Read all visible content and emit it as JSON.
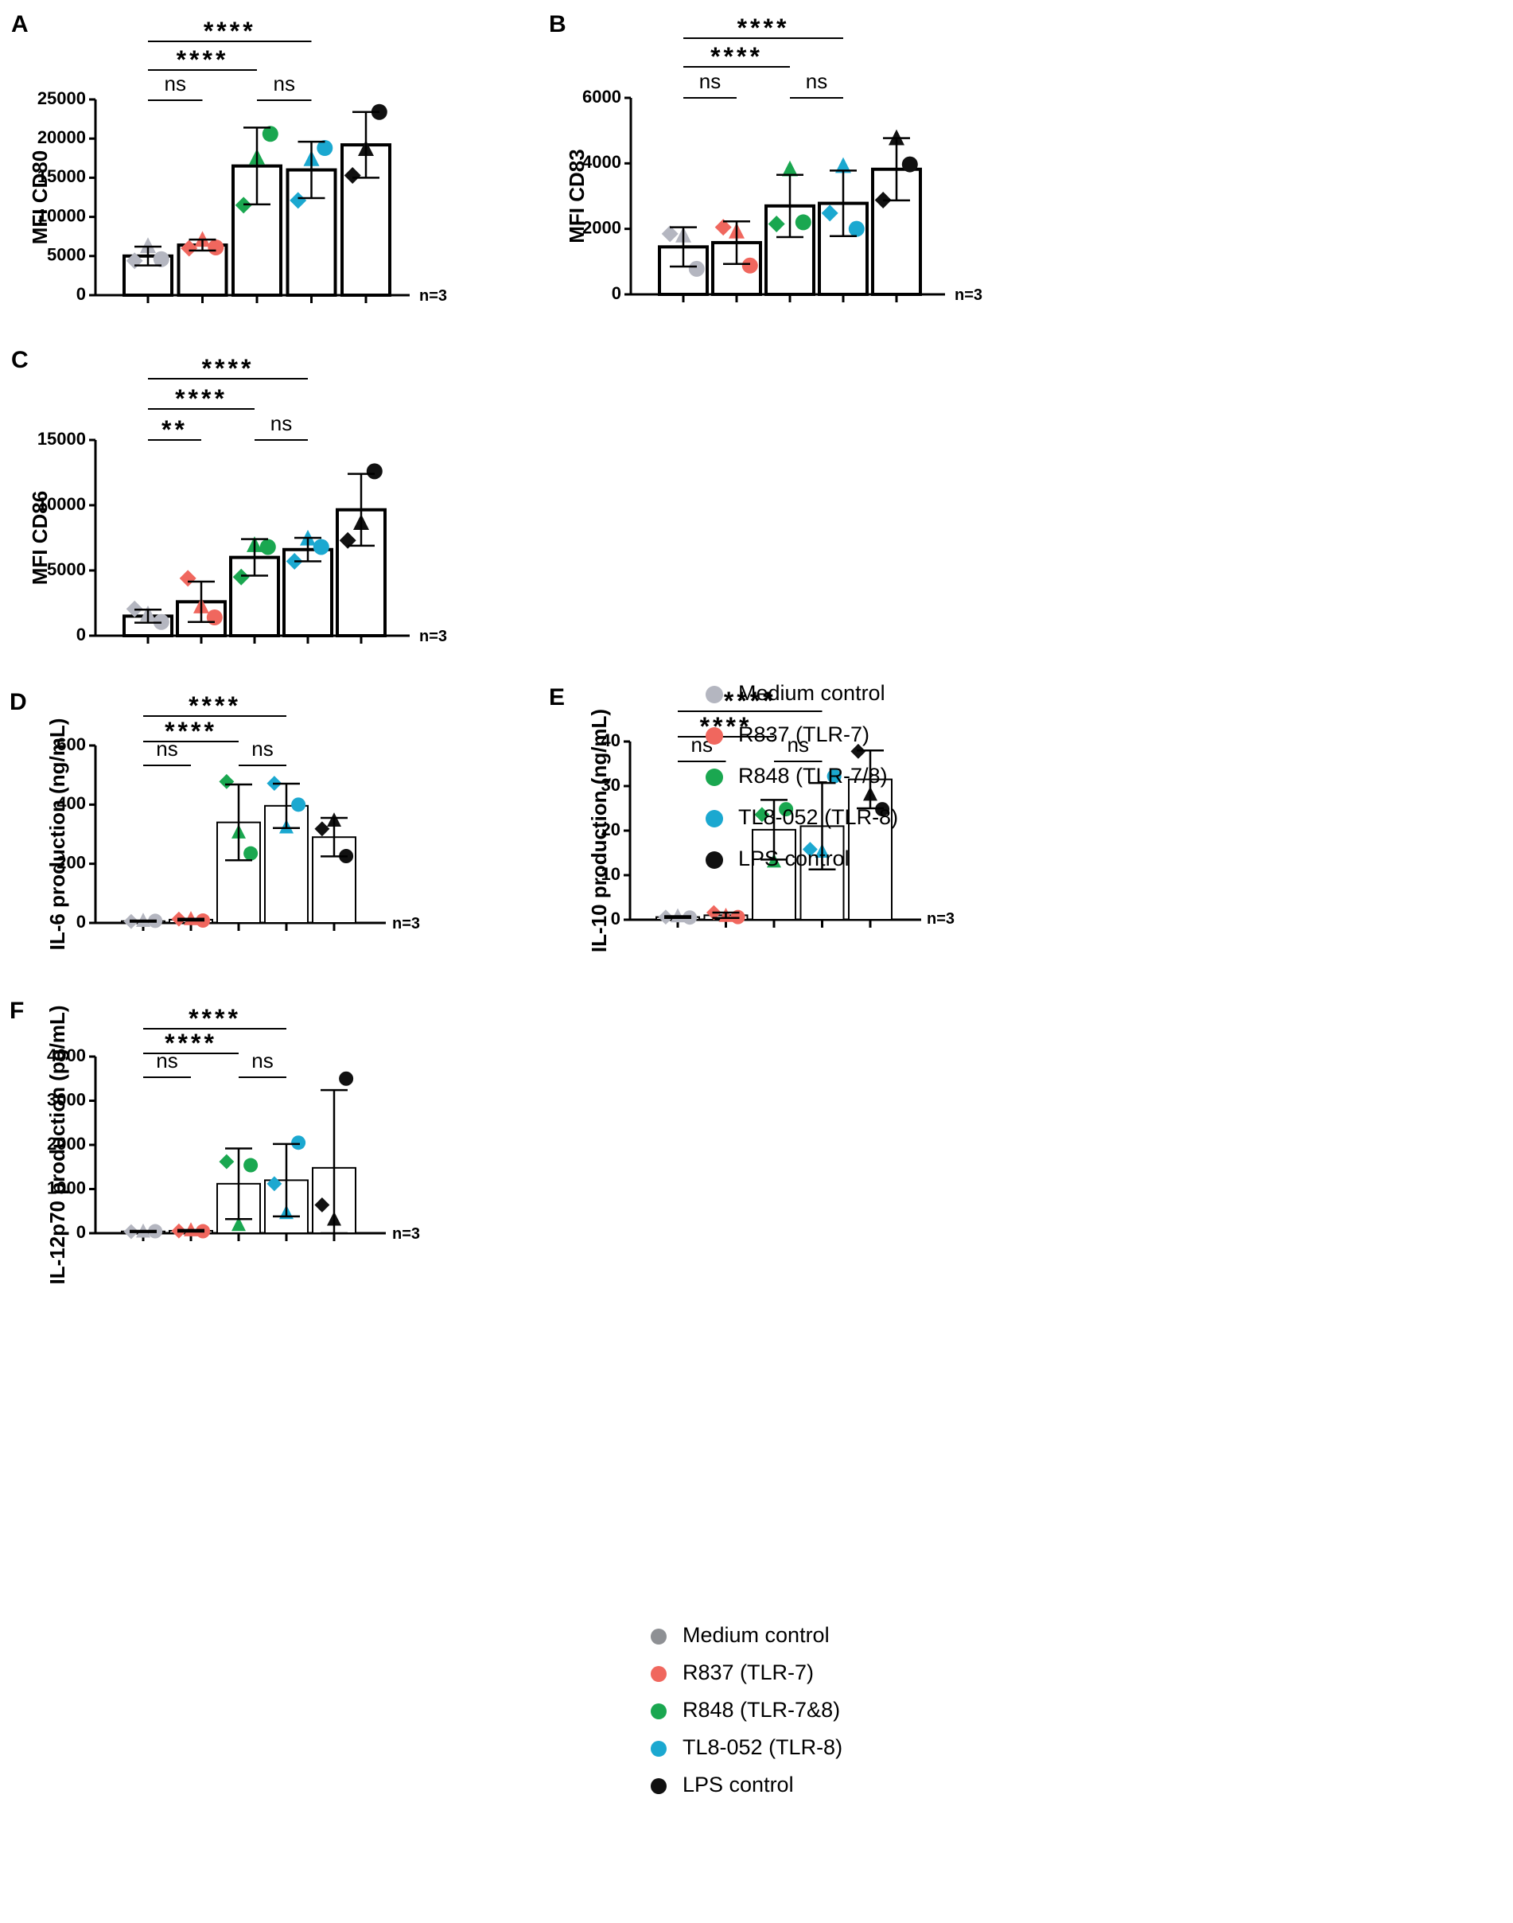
{
  "legend_top": [
    {
      "label": "Medium control",
      "color": "#b4b6c0"
    },
    {
      "label": "R837 (TLR-7)",
      "color": "#f0675e"
    },
    {
      "label": "R848 (TLR-7/8)",
      "color": "#1aa750"
    },
    {
      "label": "TL8-052 (TLR-8)",
      "color": "#1ba8d0"
    },
    {
      "label": "LPS control",
      "color": "#111111"
    }
  ],
  "legend_bottom": [
    {
      "label": "Medium control",
      "color": "#8e9094"
    },
    {
      "label": "R837 (TLR-7)",
      "color": "#f0675e"
    },
    {
      "label": "R848 (TLR-7&8)",
      "color": "#1aa750"
    },
    {
      "label": "TL8-052 (TLR-8)",
      "color": "#1ba8d0"
    },
    {
      "label": "LPS control",
      "color": "#111111"
    }
  ],
  "chart_data": [
    {
      "panel": "A",
      "type": "bar",
      "ylabel": "MFI CD80",
      "ylim": [
        0,
        25000
      ],
      "yticks": [
        "0",
        "5000",
        "10000",
        "15000",
        "20000",
        "25000"
      ],
      "note": "n=3",
      "groups": [
        "Medium control",
        "R837 (TLR-7)",
        "R848 (TLR-7/8)",
        "TL8-052 (TLR-8)",
        "LPS control"
      ],
      "values": [
        5000,
        6400,
        16500,
        16000,
        19200
      ],
      "sd": [
        1200,
        700,
        4900,
        3600,
        4200
      ],
      "points": [
        [
          4400,
          6200,
          4600
        ],
        [
          6000,
          7000,
          6100
        ],
        [
          11500,
          17500,
          20600
        ],
        [
          12100,
          17300,
          18800
        ],
        [
          15300,
          18600,
          23400
        ]
      ],
      "significance": [
        {
          "from": 0,
          "to": 1,
          "label": "ns"
        },
        {
          "from": 2,
          "to": 3,
          "label": "ns"
        },
        {
          "from": 0,
          "to": 2,
          "label": "****"
        },
        {
          "from": 0,
          "to": 3,
          "label": "****"
        }
      ]
    },
    {
      "panel": "B",
      "type": "bar",
      "ylabel": "MFI CD83",
      "ylim": [
        0,
        6000
      ],
      "yticks": [
        "0",
        "2000",
        "4000",
        "6000"
      ],
      "note": "n=3",
      "groups": [
        "Medium control",
        "R837 (TLR-7)",
        "R848 (TLR-7/8)",
        "TL8-052 (TLR-8)",
        "LPS control"
      ],
      "values": [
        1450,
        1580,
        2700,
        2780,
        3820
      ],
      "sd": [
        600,
        650,
        950,
        1000,
        950
      ],
      "points": [
        [
          1850,
          1780,
          780
        ],
        [
          2050,
          1900,
          880
        ],
        [
          2150,
          3800,
          2200
        ],
        [
          2480,
          3900,
          2000
        ],
        [
          2880,
          4750,
          3970
        ]
      ],
      "significance": [
        {
          "from": 0,
          "to": 1,
          "label": "ns"
        },
        {
          "from": 2,
          "to": 3,
          "label": "ns"
        },
        {
          "from": 0,
          "to": 2,
          "label": "****"
        },
        {
          "from": 0,
          "to": 3,
          "label": "****"
        }
      ]
    },
    {
      "panel": "C",
      "type": "bar",
      "ylabel": "MFI CD86",
      "ylim": [
        0,
        15000
      ],
      "yticks": [
        "0",
        "5000",
        "10000",
        "15000"
      ],
      "note": "n=3",
      "groups": [
        "Medium control",
        "R837 (TLR-7)",
        "R848 (TLR-7/8)",
        "TL8-052 (TLR-8)",
        "LPS control"
      ],
      "values": [
        1500,
        2600,
        6000,
        6600,
        9650
      ],
      "sd": [
        500,
        1550,
        1400,
        900,
        2750
      ],
      "points": [
        [
          2050,
          1600,
          1050
        ],
        [
          4400,
          2200,
          1400
        ],
        [
          4500,
          6900,
          6800
        ],
        [
          5700,
          7400,
          6800
        ],
        [
          7300,
          8600,
          12600
        ]
      ],
      "significance": [
        {
          "from": 0,
          "to": 1,
          "label": "**"
        },
        {
          "from": 2,
          "to": 3,
          "label": "ns"
        },
        {
          "from": 0,
          "to": 2,
          "label": "****"
        },
        {
          "from": 0,
          "to": 3,
          "label": "****"
        }
      ]
    },
    {
      "panel": "D",
      "type": "bar",
      "ylabel": "IL-6 production (ng/mL)",
      "ylim": [
        0,
        600
      ],
      "yticks": [
        "0",
        "200",
        "400",
        "600"
      ],
      "note": "n=3",
      "groups": [
        "Medium control",
        "R837 (TLR-7)",
        "R848 (TLR-7/8)",
        "TL8-052 (TLR-8)",
        "LPS control"
      ],
      "values": [
        6,
        11,
        340,
        396,
        290
      ],
      "sd": [
        2,
        3,
        128,
        75,
        65
      ],
      "points": [
        [
          5,
          6,
          7
        ],
        [
          13,
          12,
          8
        ],
        [
          478,
          305,
          235
        ],
        [
          472,
          322,
          400
        ],
        [
          318,
          345,
          226
        ]
      ],
      "significance": [
        {
          "from": 0,
          "to": 1,
          "label": "ns"
        },
        {
          "from": 2,
          "to": 3,
          "label": "ns"
        },
        {
          "from": 0,
          "to": 2,
          "label": "****"
        },
        {
          "from": 0,
          "to": 3,
          "label": "****"
        }
      ]
    },
    {
      "panel": "E",
      "type": "bar",
      "ylabel": "IL-10 production (ng/mL)",
      "ylim": [
        0,
        40
      ],
      "yticks": [
        "0",
        "10",
        "20",
        "30",
        "40"
      ],
      "note": "n=3",
      "groups": [
        "Medium control",
        "R837 (TLR-7)",
        "R848 (TLR-7/8)",
        "TL8-052 (TLR-8)",
        "LPS control"
      ],
      "values": [
        0.6,
        1.0,
        20.2,
        21.0,
        31.5
      ],
      "sd": [
        0.2,
        0.6,
        6.7,
        9.7,
        6.5
      ],
      "points": [
        [
          0.6,
          0.7,
          0.5
        ],
        [
          1.6,
          0.8,
          0.6
        ],
        [
          23.6,
          13.0,
          24.8
        ],
        [
          15.8,
          15.2,
          32.2
        ],
        [
          37.8,
          28.0,
          24.8
        ]
      ],
      "significance": [
        {
          "from": 0,
          "to": 1,
          "label": "ns"
        },
        {
          "from": 2,
          "to": 3,
          "label": "ns"
        },
        {
          "from": 0,
          "to": 2,
          "label": "****"
        },
        {
          "from": 0,
          "to": 3,
          "label": "****"
        }
      ]
    },
    {
      "panel": "F",
      "type": "bar",
      "ylabel": "IL-12p70 production (pg/mL)",
      "ylim": [
        0,
        4000
      ],
      "yticks": [
        "0",
        "1000",
        "2000",
        "3000",
        "4000"
      ],
      "note": "n=3",
      "groups": [
        "Medium control",
        "R837 (TLR-7)",
        "R848 (TLR-7/8)",
        "TL8-052 (TLR-8)",
        "LPS control"
      ],
      "values": [
        40,
        55,
        1120,
        1200,
        1480
      ],
      "sd": [
        15,
        20,
        800,
        820,
        1760
      ],
      "points": [
        [
          35,
          30,
          45
        ],
        [
          50,
          60,
          45
        ],
        [
          1620,
          180,
          1540
        ],
        [
          1120,
          450,
          2050
        ],
        [
          640,
          300,
          3500
        ]
      ],
      "significance": [
        {
          "from": 0,
          "to": 1,
          "label": "ns"
        },
        {
          "from": 2,
          "to": 3,
          "label": "ns"
        },
        {
          "from": 0,
          "to": 2,
          "label": "****"
        },
        {
          "from": 0,
          "to": 3,
          "label": "****"
        }
      ]
    }
  ]
}
